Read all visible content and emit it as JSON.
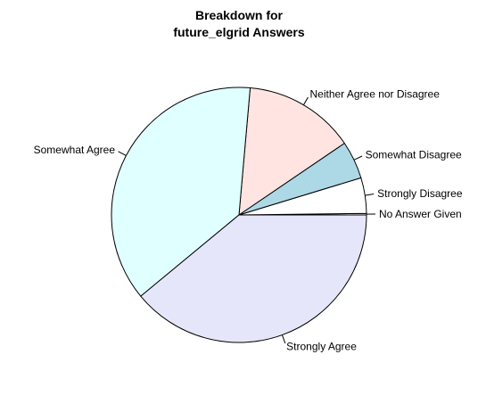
{
  "chart_data": {
    "type": "pie",
    "title_lines": [
      "Breakdown for",
      "future_elgrid Answers"
    ],
    "slices": [
      {
        "label": "No Answer Given",
        "value": 0.2,
        "color": "#ffffff"
      },
      {
        "label": "Strongly Disagree",
        "value": 4.5,
        "color": "#ffffff"
      },
      {
        "label": "Somewhat Disagree",
        "value": 4.8,
        "color": "#add8e6"
      },
      {
        "label": "Neither Agree nor Disagree",
        "value": 14.1,
        "color": "#ffe4e1"
      },
      {
        "label": "Somewhat Agree",
        "value": 37.4,
        "color": "#e0ffff"
      },
      {
        "label": "Strongly Agree",
        "value": 39.0,
        "color": "#e6e6fa"
      }
    ],
    "start_angle_deg": 0,
    "direction": "counterclockwise",
    "legend": "none"
  }
}
